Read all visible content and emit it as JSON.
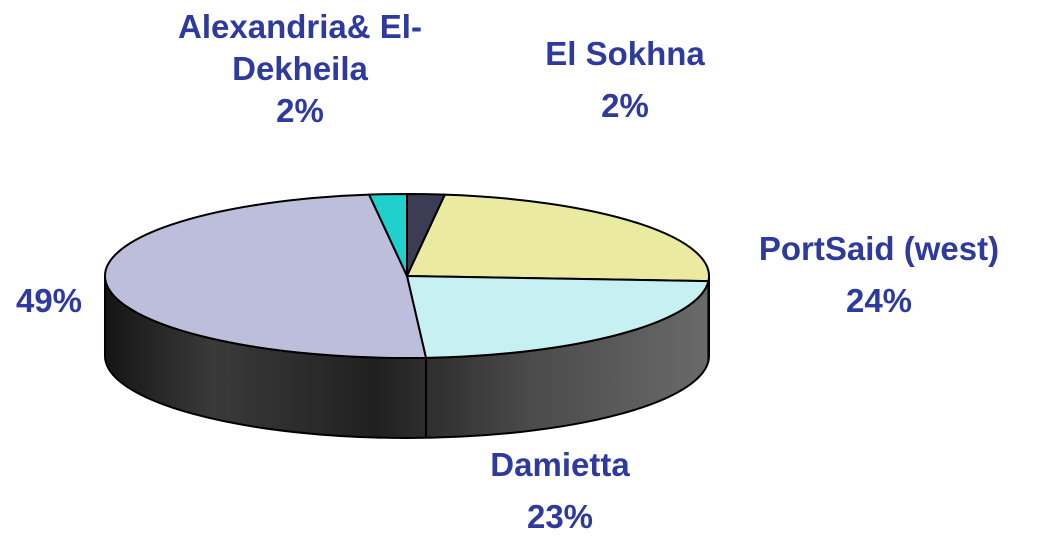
{
  "chart_data": {
    "type": "pie",
    "three_d": true,
    "start_angle_deg": -90,
    "direction": "clockwise",
    "slices": [
      {
        "label": "El Sokhna",
        "value": 2,
        "value_label": "2%",
        "color": "#3c3d54"
      },
      {
        "label": "PortSaid (west)",
        "value": 24,
        "value_label": "24%",
        "color": "#eaeaa0"
      },
      {
        "label": "Damietta",
        "value": 23,
        "value_label": "23%",
        "color": "#c7f0f2"
      },
      {
        "label": "",
        "value": 49,
        "value_label": "49%",
        "color": "#bcbedc"
      },
      {
        "label": "Alexandria& El-Dekheila",
        "label_lines": [
          "Alexandria& El-",
          "Dekheila"
        ],
        "value": 2,
        "value_label": "2%",
        "color": "#1fd0cc"
      }
    ]
  }
}
